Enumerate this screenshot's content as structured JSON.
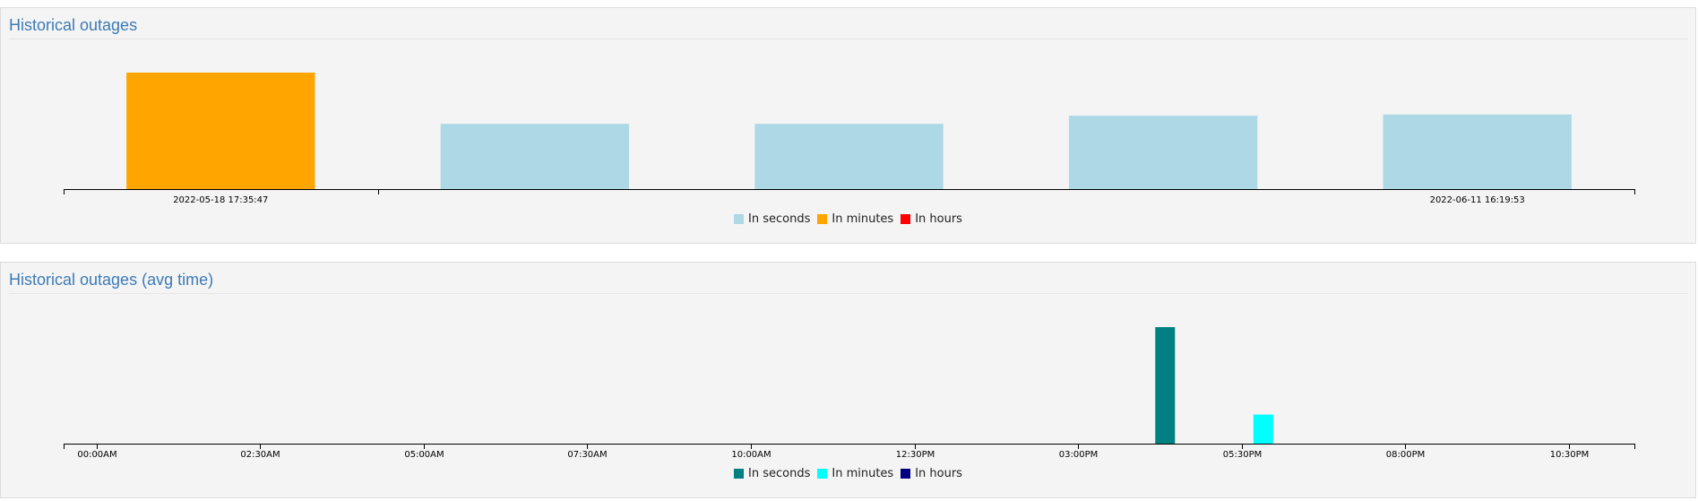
{
  "panels": [
    {
      "title": "Historical outages"
    },
    {
      "title": "Historical outages (avg time)"
    }
  ],
  "chart_data": [
    {
      "type": "bar",
      "title": "Historical outages",
      "categories": [
        "2022-05-18 17:35:47",
        "",
        "",
        "",
        "2022-06-11 16:19:53"
      ],
      "values": [
        100,
        56,
        56,
        63,
        64
      ],
      "bar_colors": [
        "#ffa500",
        "#add8e6",
        "#add8e6",
        "#add8e6",
        "#add8e6"
      ],
      "ylim": [
        0,
        100
      ],
      "grid": false,
      "legend": {
        "placement": "bottom-center",
        "entries": [
          {
            "label": "In seconds",
            "color": "#add8e6"
          },
          {
            "label": "In minutes",
            "color": "#ffa500"
          },
          {
            "label": "In hours",
            "color": "#ff0000"
          }
        ]
      }
    },
    {
      "type": "bar",
      "title": "Historical outages (avg time)",
      "x_ticks": [
        "00:00AM",
        "02:30AM",
        "05:00AM",
        "07:30AM",
        "10:00AM",
        "12:30PM",
        "03:00PM",
        "05:30PM",
        "08:00PM",
        "10:30PM"
      ],
      "xlim_hours": [
        -0.5,
        23.5
      ],
      "bars": [
        {
          "time_hours": 16.33,
          "value": 100,
          "color": "#008080",
          "series": "In seconds"
        },
        {
          "time_hours": 17.83,
          "value": 25,
          "color": "#00ffff",
          "series": "In minutes"
        }
      ],
      "ylim": [
        0,
        100
      ],
      "grid": false,
      "legend": {
        "placement": "bottom-center",
        "entries": [
          {
            "label": "In seconds",
            "color": "#008080"
          },
          {
            "label": "In minutes",
            "color": "#00ffff"
          },
          {
            "label": "In hours",
            "color": "#000080"
          }
        ]
      }
    }
  ]
}
